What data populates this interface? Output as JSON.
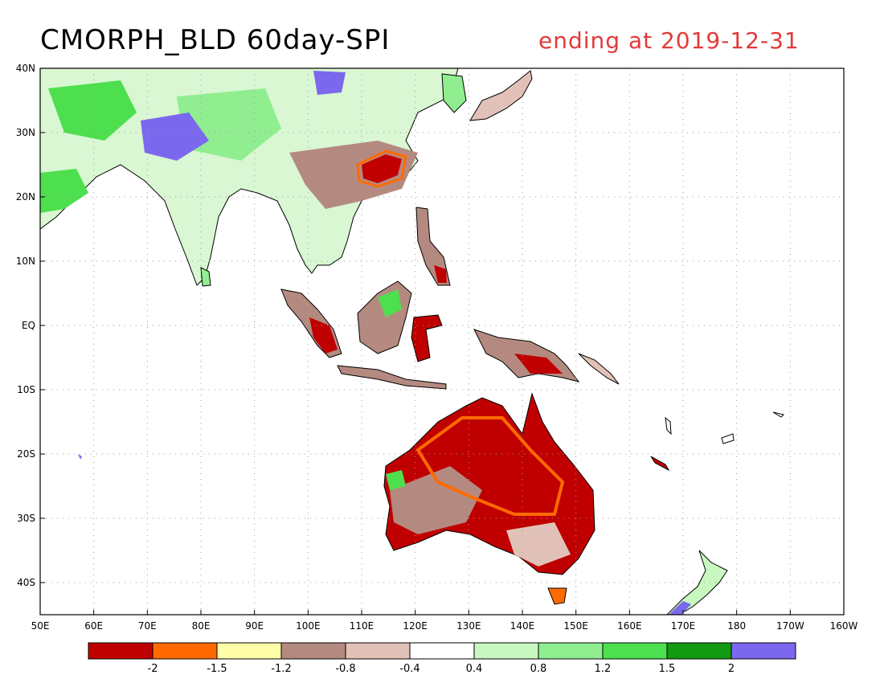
{
  "title": {
    "main": "CMORPH_BLD 60day-SPI",
    "ending": "ending at 2019-12-31"
  },
  "map": {
    "lon_range": [
      50,
      200
    ],
    "lat_range": [
      -45,
      40
    ],
    "lon_ticks": [
      {
        "value": 50,
        "label": "50E"
      },
      {
        "value": 60,
        "label": "60E"
      },
      {
        "value": 70,
        "label": "70E"
      },
      {
        "value": 80,
        "label": "80E"
      },
      {
        "value": 90,
        "label": "90E"
      },
      {
        "value": 100,
        "label": "100E"
      },
      {
        "value": 110,
        "label": "110E"
      },
      {
        "value": 120,
        "label": "120E"
      },
      {
        "value": 130,
        "label": "130E"
      },
      {
        "value": 140,
        "label": "140E"
      },
      {
        "value": 150,
        "label": "150E"
      },
      {
        "value": 160,
        "label": "160E"
      },
      {
        "value": 170,
        "label": "170E"
      },
      {
        "value": 180,
        "label": "180"
      },
      {
        "value": 190,
        "label": "170W"
      },
      {
        "value": 200,
        "label": "160W"
      }
    ],
    "lat_ticks": [
      {
        "value": 40,
        "label": "40N"
      },
      {
        "value": 30,
        "label": "30N"
      },
      {
        "value": 20,
        "label": "20N"
      },
      {
        "value": 10,
        "label": "10N"
      },
      {
        "value": 0,
        "label": "EQ"
      },
      {
        "value": -10,
        "label": "10S"
      },
      {
        "value": -20,
        "label": "20S"
      },
      {
        "value": -30,
        "label": "30S"
      },
      {
        "value": -40,
        "label": "40S"
      }
    ],
    "grid": "dotted"
  },
  "colorbar": {
    "colors": [
      "#c00000",
      "#ff6a00",
      "#ffffaa",
      "#b48a80",
      "#e2c2b8",
      "#ffffff",
      "#c8f7c0",
      "#90ee90",
      "#4ddf4d",
      "#129a12",
      "#7b68ee"
    ],
    "labels": [
      "-2",
      "-1.5",
      "-1.2",
      "-0.8",
      "-0.4",
      "0.4",
      "0.8",
      "1.2",
      "1.5",
      "2"
    ]
  }
}
